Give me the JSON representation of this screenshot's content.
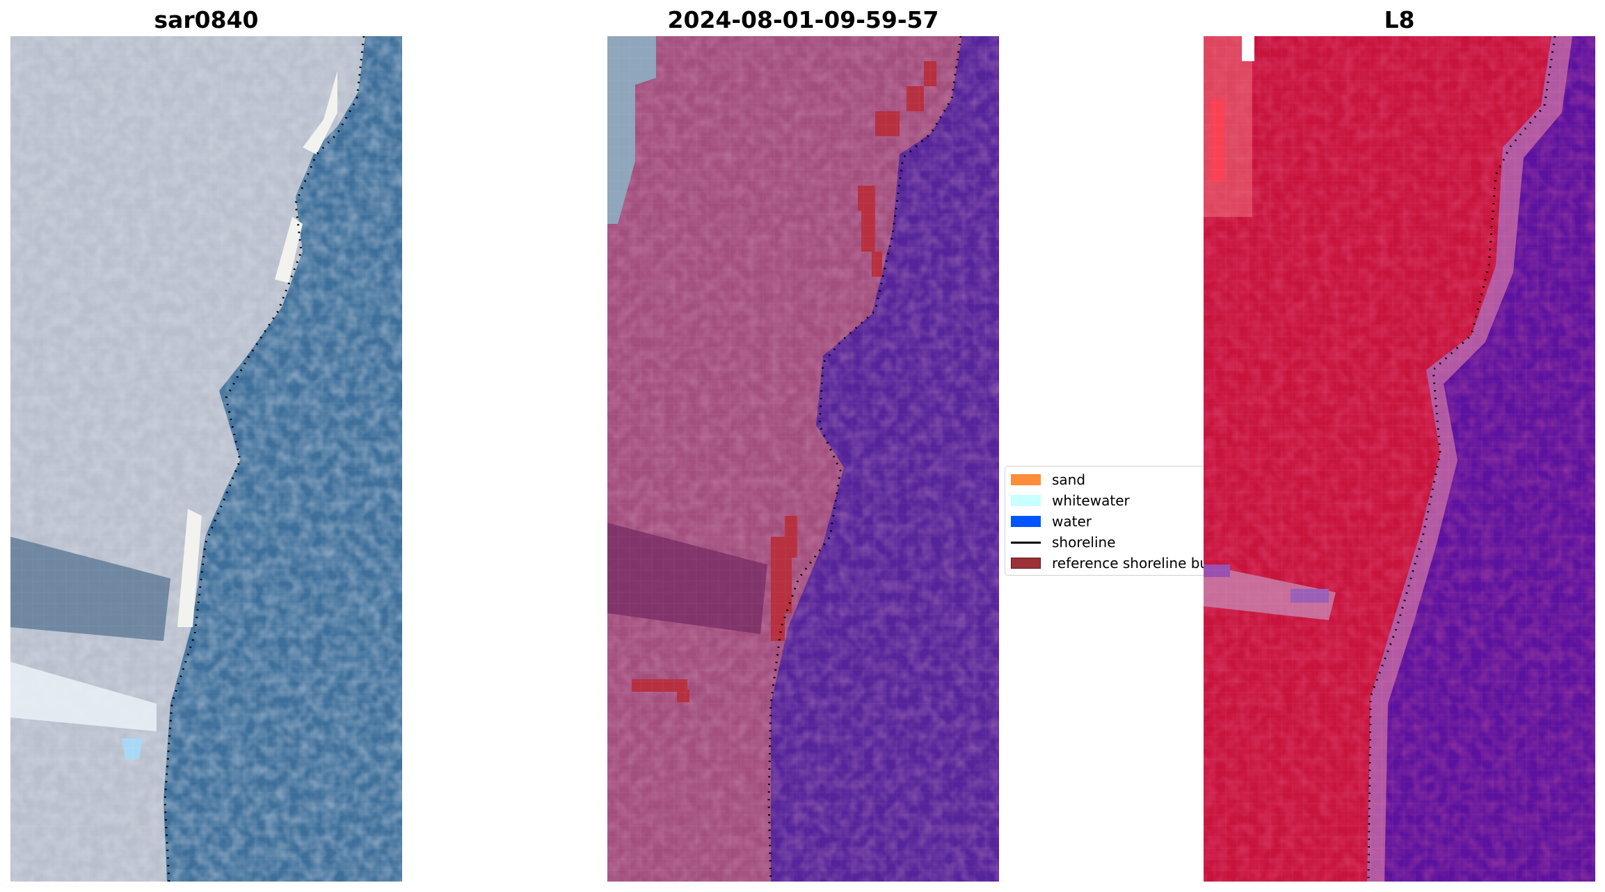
{
  "panels": [
    {
      "title": "sar0840"
    },
    {
      "title": "2024-08-01-09-59-57"
    },
    {
      "title": "L8"
    }
  ],
  "legend": {
    "items": [
      {
        "label": "sand",
        "color": "#ff8c3a"
      },
      {
        "label": "whitewater",
        "color": "#c8ffff"
      },
      {
        "label": "water",
        "color": "#0055ff"
      },
      {
        "label": "shoreline",
        "color": "#000000"
      },
      {
        "label": "reference shoreline buffer",
        "color": "#9b3237"
      }
    ]
  },
  "colors": {
    "rgb_land": "#b9bfcc",
    "rgb_water": "#3e6f9a",
    "classified_land": "#a34f7e",
    "classified_water": "#55249a",
    "classified_buffer": "#b73040",
    "false_color_land": "#c8143c",
    "false_color_water": "#5c129e"
  }
}
